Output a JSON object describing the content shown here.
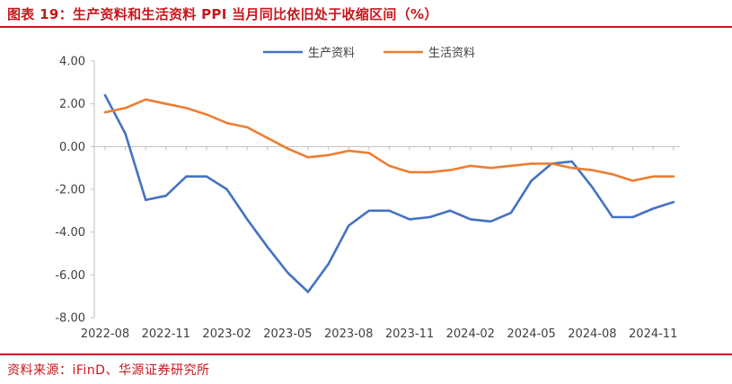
{
  "title": "图表 19：生产资料和生活资料 PPI 当月同比依旧处于收缩区间（%）",
  "source": "资料来源：iFinD、华源证券研究所",
  "colors": {
    "accent": "#c8161d",
    "series1": "#4472c4",
    "series2": "#ed7d31"
  },
  "chart_data": {
    "type": "line",
    "xlabel": "",
    "ylabel": "",
    "ylim": [
      -8,
      4
    ],
    "yticks": [
      4,
      2,
      0,
      -2,
      -4,
      -6,
      -8
    ],
    "ytick_labels": [
      "4.00",
      "2.00",
      "0.00",
      "-2.00",
      "-4.00",
      "-6.00",
      "-8.00"
    ],
    "xtick_labels": [
      "2022-08",
      "2022-11",
      "2023-02",
      "2023-05",
      "2023-08",
      "2023-11",
      "2024-02",
      "2024-05",
      "2024-08",
      "2024-11"
    ],
    "legend_position": "top-center",
    "grid": false,
    "x": [
      "2022-08",
      "2022-09",
      "2022-10",
      "2022-11",
      "2022-12",
      "2023-01",
      "2023-02",
      "2023-03",
      "2023-04",
      "2023-05",
      "2023-06",
      "2023-07",
      "2023-08",
      "2023-09",
      "2023-10",
      "2023-11",
      "2023-12",
      "2024-01",
      "2024-02",
      "2024-03",
      "2024-04",
      "2024-05",
      "2024-06",
      "2024-07",
      "2024-08",
      "2024-09",
      "2024-10",
      "2024-11",
      "2024-12"
    ],
    "series": [
      {
        "name": "生产资料",
        "color": "#4472c4",
        "values": [
          2.4,
          0.6,
          -2.5,
          -2.3,
          -1.4,
          -1.4,
          -2.0,
          -3.4,
          -4.7,
          -5.9,
          -6.8,
          -5.5,
          -3.7,
          -3.0,
          -3.0,
          -3.4,
          -3.3,
          -3.0,
          -3.4,
          -3.5,
          -3.1,
          -1.6,
          -0.8,
          -0.7,
          -1.9,
          -3.3,
          -3.3,
          -2.9,
          -2.6
        ]
      },
      {
        "name": "生活资料",
        "color": "#ed7d31",
        "values": [
          1.6,
          1.8,
          2.2,
          2.0,
          1.8,
          1.5,
          1.1,
          0.9,
          0.4,
          -0.1,
          -0.5,
          -0.4,
          -0.2,
          -0.3,
          -0.9,
          -1.2,
          -1.2,
          -1.1,
          -0.9,
          -1.0,
          -0.9,
          -0.8,
          -0.8,
          -1.0,
          -1.1,
          -1.3,
          -1.6,
          -1.4,
          -1.4
        ]
      }
    ]
  }
}
